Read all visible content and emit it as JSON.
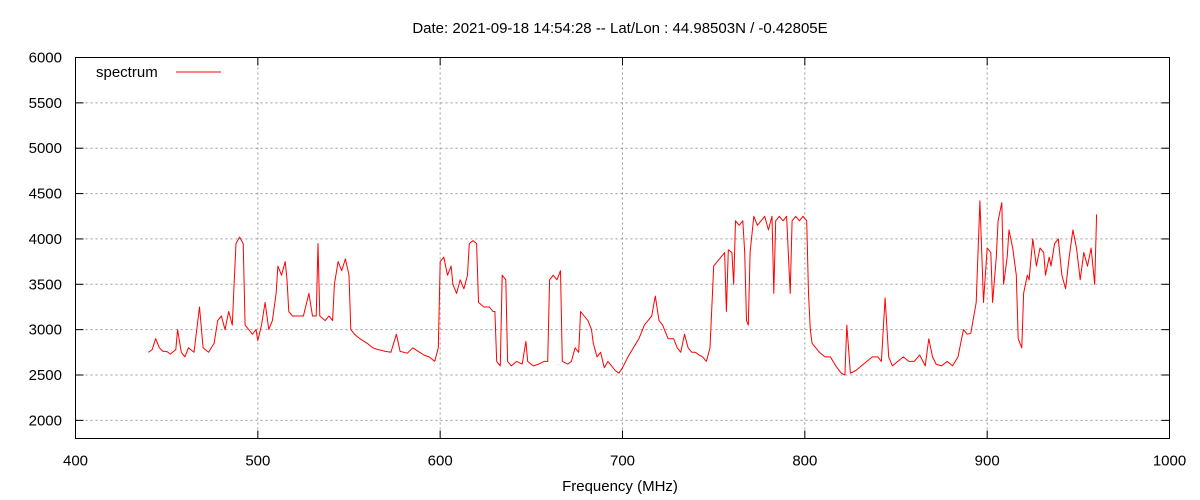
{
  "chart_data": {
    "type": "line",
    "title": "Date: 2021-09-18 14:54:28  --  Lat/Lon : 44.98503N / -0.42805E",
    "xlabel": "Frequency (MHz)",
    "ylabel": "",
    "xlim": [
      400,
      1000
    ],
    "ylim": [
      1800,
      6000
    ],
    "xticks": [
      400,
      500,
      600,
      700,
      800,
      900,
      1000
    ],
    "yticks": [
      2000,
      2500,
      3000,
      3500,
      4000,
      4500,
      5000,
      5500,
      6000
    ],
    "grid": true,
    "legend": "top-left",
    "series": [
      {
        "name": "spectrum",
        "color": "#ff0000",
        "points": [
          [
            440,
            2750
          ],
          [
            442,
            2780
          ],
          [
            444,
            2900
          ],
          [
            446,
            2800
          ],
          [
            448,
            2760
          ],
          [
            450,
            2760
          ],
          [
            452,
            2730
          ],
          [
            455,
            2780
          ],
          [
            456,
            3000
          ],
          [
            458,
            2750
          ],
          [
            460,
            2700
          ],
          [
            462,
            2800
          ],
          [
            465,
            2750
          ],
          [
            468,
            3250
          ],
          [
            470,
            2800
          ],
          [
            473,
            2750
          ],
          [
            476,
            2850
          ],
          [
            478,
            3100
          ],
          [
            480,
            3150
          ],
          [
            482,
            3000
          ],
          [
            484,
            3200
          ],
          [
            486,
            3050
          ],
          [
            487,
            3500
          ],
          [
            488,
            3950
          ],
          [
            490,
            4020
          ],
          [
            492,
            3950
          ],
          [
            493,
            3050
          ],
          [
            495,
            3000
          ],
          [
            497,
            2950
          ],
          [
            499,
            3000
          ],
          [
            500,
            2880
          ],
          [
            502,
            3050
          ],
          [
            504,
            3300
          ],
          [
            506,
            3000
          ],
          [
            508,
            3100
          ],
          [
            510,
            3400
          ],
          [
            511,
            3700
          ],
          [
            513,
            3600
          ],
          [
            515,
            3750
          ],
          [
            516,
            3550
          ],
          [
            517,
            3200
          ],
          [
            519,
            3150
          ],
          [
            522,
            3150
          ],
          [
            525,
            3150
          ],
          [
            528,
            3400
          ],
          [
            530,
            3150
          ],
          [
            532,
            3150
          ],
          [
            533,
            3950
          ],
          [
            534,
            3150
          ],
          [
            537,
            3100
          ],
          [
            539,
            3150
          ],
          [
            541,
            3100
          ],
          [
            542,
            3500
          ],
          [
            544,
            3750
          ],
          [
            546,
            3650
          ],
          [
            548,
            3780
          ],
          [
            550,
            3600
          ],
          [
            551,
            3000
          ],
          [
            553,
            2950
          ],
          [
            556,
            2900
          ],
          [
            560,
            2850
          ],
          [
            563,
            2800
          ],
          [
            566,
            2780
          ],
          [
            570,
            2760
          ],
          [
            573,
            2750
          ],
          [
            576,
            2950
          ],
          [
            578,
            2760
          ],
          [
            582,
            2740
          ],
          [
            585,
            2800
          ],
          [
            588,
            2760
          ],
          [
            591,
            2720
          ],
          [
            594,
            2700
          ],
          [
            597,
            2650
          ],
          [
            599,
            2800
          ],
          [
            600,
            3750
          ],
          [
            602,
            3800
          ],
          [
            604,
            3600
          ],
          [
            606,
            3700
          ],
          [
            607,
            3500
          ],
          [
            609,
            3400
          ],
          [
            611,
            3550
          ],
          [
            613,
            3450
          ],
          [
            615,
            3600
          ],
          [
            616,
            3950
          ],
          [
            618,
            3980
          ],
          [
            620,
            3950
          ],
          [
            621,
            3300
          ],
          [
            624,
            3250
          ],
          [
            627,
            3250
          ],
          [
            629,
            3200
          ],
          [
            630,
            3200
          ],
          [
            631,
            2650
          ],
          [
            633,
            2600
          ],
          [
            634,
            3600
          ],
          [
            636,
            3550
          ],
          [
            637,
            2650
          ],
          [
            639,
            2600
          ],
          [
            642,
            2650
          ],
          [
            645,
            2620
          ],
          [
            647,
            2870
          ],
          [
            648,
            2650
          ],
          [
            651,
            2600
          ],
          [
            654,
            2620
          ],
          [
            657,
            2650
          ],
          [
            659,
            2650
          ],
          [
            660,
            3550
          ],
          [
            662,
            3600
          ],
          [
            664,
            3550
          ],
          [
            666,
            3650
          ],
          [
            667,
            2650
          ],
          [
            670,
            2620
          ],
          [
            672,
            2650
          ],
          [
            674,
            2800
          ],
          [
            676,
            2750
          ],
          [
            677,
            3200
          ],
          [
            679,
            3150
          ],
          [
            681,
            3100
          ],
          [
            683,
            3000
          ],
          [
            684,
            2850
          ],
          [
            686,
            2700
          ],
          [
            688,
            2750
          ],
          [
            690,
            2580
          ],
          [
            692,
            2650
          ],
          [
            694,
            2600
          ],
          [
            696,
            2550
          ],
          [
            698,
            2520
          ],
          [
            700,
            2580
          ],
          [
            703,
            2700
          ],
          [
            706,
            2800
          ],
          [
            709,
            2900
          ],
          [
            712,
            3050
          ],
          [
            714,
            3100
          ],
          [
            716,
            3150
          ],
          [
            718,
            3370
          ],
          [
            720,
            3100
          ],
          [
            722,
            3050
          ],
          [
            725,
            2900
          ],
          [
            728,
            2900
          ],
          [
            730,
            2800
          ],
          [
            732,
            2750
          ],
          [
            734,
            2950
          ],
          [
            736,
            2800
          ],
          [
            738,
            2750
          ],
          [
            740,
            2750
          ],
          [
            742,
            2720
          ],
          [
            744,
            2700
          ],
          [
            746,
            2650
          ],
          [
            748,
            2800
          ],
          [
            750,
            3700
          ],
          [
            752,
            3750
          ],
          [
            754,
            3800
          ],
          [
            756,
            3850
          ],
          [
            757,
            3200
          ],
          [
            758,
            3880
          ],
          [
            760,
            3850
          ],
          [
            761,
            3500
          ],
          [
            762,
            4200
          ],
          [
            764,
            4150
          ],
          [
            766,
            4200
          ],
          [
            767,
            3850
          ],
          [
            768,
            3100
          ],
          [
            769,
            3050
          ],
          [
            770,
            3850
          ],
          [
            772,
            4250
          ],
          [
            774,
            4150
          ],
          [
            776,
            4200
          ],
          [
            778,
            4250
          ],
          [
            780,
            4100
          ],
          [
            782,
            4250
          ],
          [
            783,
            3400
          ],
          [
            784,
            4200
          ],
          [
            786,
            4250
          ],
          [
            788,
            4200
          ],
          [
            790,
            4250
          ],
          [
            792,
            3400
          ],
          [
            793,
            4200
          ],
          [
            795,
            4250
          ],
          [
            797,
            4200
          ],
          [
            799,
            4250
          ],
          [
            801,
            4200
          ],
          [
            802,
            3400
          ],
          [
            803,
            3000
          ],
          [
            804,
            2850
          ],
          [
            806,
            2800
          ],
          [
            808,
            2750
          ],
          [
            811,
            2700
          ],
          [
            814,
            2700
          ],
          [
            817,
            2600
          ],
          [
            820,
            2520
          ],
          [
            822,
            2500
          ],
          [
            823,
            3050
          ],
          [
            825,
            2520
          ],
          [
            828,
            2550
          ],
          [
            831,
            2600
          ],
          [
            834,
            2650
          ],
          [
            837,
            2700
          ],
          [
            840,
            2700
          ],
          [
            842,
            2650
          ],
          [
            844,
            3350
          ],
          [
            846,
            2700
          ],
          [
            848,
            2600
          ],
          [
            851,
            2650
          ],
          [
            854,
            2700
          ],
          [
            857,
            2650
          ],
          [
            860,
            2650
          ],
          [
            863,
            2720
          ],
          [
            866,
            2600
          ],
          [
            868,
            2900
          ],
          [
            870,
            2700
          ],
          [
            872,
            2620
          ],
          [
            875,
            2600
          ],
          [
            878,
            2650
          ],
          [
            881,
            2600
          ],
          [
            884,
            2700
          ],
          [
            886,
            2900
          ],
          [
            887,
            3000
          ],
          [
            889,
            2950
          ],
          [
            891,
            2960
          ],
          [
            894,
            3300
          ],
          [
            896,
            4420
          ],
          [
            898,
            3300
          ],
          [
            900,
            3900
          ],
          [
            902,
            3850
          ],
          [
            903,
            3300
          ],
          [
            905,
            3800
          ],
          [
            906,
            4200
          ],
          [
            908,
            4400
          ],
          [
            909,
            3500
          ],
          [
            911,
            3800
          ],
          [
            912,
            4100
          ],
          [
            914,
            3900
          ],
          [
            916,
            3600
          ],
          [
            917,
            2900
          ],
          [
            919,
            2800
          ],
          [
            920,
            3400
          ],
          [
            922,
            3600
          ],
          [
            923,
            3550
          ],
          [
            925,
            4000
          ],
          [
            927,
            3700
          ],
          [
            929,
            3900
          ],
          [
            931,
            3850
          ],
          [
            932,
            3600
          ],
          [
            934,
            3800
          ],
          [
            935,
            3700
          ],
          [
            937,
            3950
          ],
          [
            939,
            4000
          ],
          [
            941,
            3600
          ],
          [
            943,
            3450
          ],
          [
            945,
            3800
          ],
          [
            947,
            4100
          ],
          [
            949,
            3900
          ],
          [
            951,
            3550
          ],
          [
            953,
            3850
          ],
          [
            955,
            3700
          ],
          [
            957,
            3900
          ],
          [
            959,
            3500
          ],
          [
            960,
            4270
          ]
        ]
      }
    ]
  }
}
